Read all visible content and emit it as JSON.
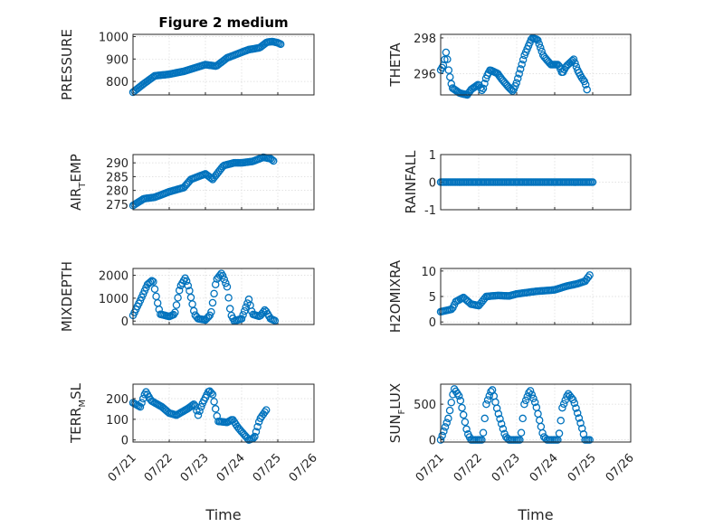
{
  "chart_data": [
    {
      "type": "scatter",
      "title": "Figure 2 medium",
      "ylabel": "PRESSURE",
      "ylim": [
        740,
        1010
      ],
      "yticks": [
        800,
        900,
        1000
      ],
      "xlim": [
        0,
        5
      ],
      "xticks": [
        "07/21",
        "07/22",
        "07/23",
        "07/24",
        "07/25",
        "07/26"
      ],
      "xlabel": "",
      "anchors": [
        [
          0,
          752
        ],
        [
          0.3,
          790
        ],
        [
          0.6,
          825
        ],
        [
          1.0,
          832
        ],
        [
          1.4,
          845
        ],
        [
          1.8,
          865
        ],
        [
          2.0,
          875
        ],
        [
          2.3,
          868
        ],
        [
          2.6,
          905
        ],
        [
          3.0,
          930
        ],
        [
          3.2,
          942
        ],
        [
          3.5,
          950
        ],
        [
          3.7,
          975
        ],
        [
          3.85,
          978
        ],
        [
          4.0,
          972
        ],
        [
          4.1,
          965
        ]
      ],
      "marker_step": 0.04,
      "series": [
        {
          "y": []
        }
      ]
    },
    {
      "type": "scatter",
      "title": "",
      "ylabel": "THETA",
      "ylim": [
        294.8,
        298.2
      ],
      "yticks": [
        296,
        298
      ],
      "xlim": [
        0,
        5
      ],
      "xticks": [
        "07/21",
        "07/22",
        "07/23",
        "07/24",
        "07/25",
        "07/26"
      ],
      "xlabel": "",
      "anchors": [
        [
          0,
          296.2
        ],
        [
          0.08,
          296.5
        ],
        [
          0.15,
          297.3
        ],
        [
          0.2,
          296.3
        ],
        [
          0.3,
          295.2
        ],
        [
          0.5,
          294.9
        ],
        [
          0.7,
          294.8
        ],
        [
          0.8,
          295.1
        ],
        [
          1.0,
          295.4
        ],
        [
          1.1,
          295.0
        ],
        [
          1.2,
          295.8
        ],
        [
          1.3,
          296.2
        ],
        [
          1.5,
          296.0
        ],
        [
          1.6,
          295.7
        ],
        [
          1.8,
          295.2
        ],
        [
          1.9,
          295.0
        ],
        [
          2.0,
          295.5
        ],
        [
          2.2,
          297.0
        ],
        [
          2.4,
          298.0
        ],
        [
          2.55,
          297.9
        ],
        [
          2.7,
          297.0
        ],
        [
          2.9,
          296.5
        ],
        [
          3.1,
          296.5
        ],
        [
          3.2,
          296.0
        ],
        [
          3.3,
          296.4
        ],
        [
          3.4,
          296.6
        ],
        [
          3.5,
          296.8
        ],
        [
          3.6,
          296.2
        ],
        [
          3.7,
          295.8
        ],
        [
          3.8,
          295.5
        ],
        [
          3.85,
          295.1
        ]
      ],
      "marker_step": 0.035,
      "series": [
        {
          "y": []
        }
      ]
    },
    {
      "type": "scatter",
      "title": "",
      "ylabel": "AIR_TEMP",
      "ylim": [
        273,
        293
      ],
      "yticks": [
        275,
        280,
        285,
        290
      ],
      "xlim": [
        0,
        5
      ],
      "xticks": [
        "07/21",
        "07/22",
        "07/23",
        "07/24",
        "07/25",
        "07/26"
      ],
      "xlabel": "",
      "anchors": [
        [
          0,
          274.5
        ],
        [
          0.3,
          277
        ],
        [
          0.6,
          277.5
        ],
        [
          1.0,
          279.5
        ],
        [
          1.4,
          281
        ],
        [
          1.6,
          284
        ],
        [
          1.8,
          285
        ],
        [
          2.0,
          286
        ],
        [
          2.2,
          284
        ],
        [
          2.5,
          289
        ],
        [
          2.8,
          290
        ],
        [
          3.0,
          290
        ],
        [
          3.3,
          290.5
        ],
        [
          3.5,
          291.5
        ],
        [
          3.6,
          292
        ],
        [
          3.8,
          291.5
        ],
        [
          3.9,
          290.5
        ]
      ],
      "marker_step": 0.04,
      "series": [
        {
          "y": []
        }
      ]
    },
    {
      "type": "scatter",
      "title": "",
      "ylabel": "RAINFALL",
      "ylim": [
        -1,
        1
      ],
      "yticks": [
        -1,
        0,
        1
      ],
      "xlim": [
        0,
        5
      ],
      "xticks": [
        "07/21",
        "07/22",
        "07/23",
        "07/24",
        "07/25",
        "07/26"
      ],
      "xlabel": "",
      "anchors": [
        [
          0,
          0
        ],
        [
          4.0,
          0
        ]
      ],
      "marker_step": 0.04,
      "series": [
        {
          "y": []
        }
      ]
    },
    {
      "type": "scatter",
      "title": "",
      "ylabel": "MIXDEPTH",
      "ylim": [
        -150,
        2300
      ],
      "yticks": [
        0,
        1000,
        2000
      ],
      "xlim": [
        0,
        5
      ],
      "xticks": [
        "07/21",
        "07/22",
        "07/23",
        "07/24",
        "07/25",
        "07/26"
      ],
      "xlabel": "",
      "anchors": [
        [
          0,
          250
        ],
        [
          0.2,
          900
        ],
        [
          0.4,
          1600
        ],
        [
          0.55,
          1800
        ],
        [
          0.65,
          1000
        ],
        [
          0.75,
          300
        ],
        [
          1.0,
          200
        ],
        [
          1.15,
          300
        ],
        [
          1.3,
          1500
        ],
        [
          1.45,
          1900
        ],
        [
          1.55,
          1400
        ],
        [
          1.7,
          300
        ],
        [
          1.8,
          100
        ],
        [
          2.0,
          50
        ],
        [
          2.15,
          300
        ],
        [
          2.3,
          1800
        ],
        [
          2.45,
          2100
        ],
        [
          2.6,
          1500
        ],
        [
          2.7,
          300
        ],
        [
          2.8,
          0
        ],
        [
          3.0,
          100
        ],
        [
          3.2,
          950
        ],
        [
          3.3,
          300
        ],
        [
          3.5,
          200
        ],
        [
          3.65,
          500
        ],
        [
          3.8,
          100
        ],
        [
          3.95,
          0
        ]
      ],
      "marker_step": 0.04,
      "series": [
        {
          "y": []
        }
      ]
    },
    {
      "type": "scatter",
      "title": "",
      "ylabel": "H2OMIXRA",
      "ylim": [
        -0.5,
        10.5
      ],
      "yticks": [
        0,
        5,
        10
      ],
      "xlim": [
        0,
        5
      ],
      "xticks": [
        "07/21",
        "07/22",
        "07/23",
        "07/24",
        "07/25",
        "07/26"
      ],
      "xlabel": "",
      "anchors": [
        [
          0,
          2
        ],
        [
          0.3,
          2.5
        ],
        [
          0.4,
          4
        ],
        [
          0.6,
          4.8
        ],
        [
          0.8,
          3.5
        ],
        [
          1.0,
          3.2
        ],
        [
          1.2,
          5
        ],
        [
          1.5,
          5.2
        ],
        [
          1.8,
          5.1
        ],
        [
          2.0,
          5.5
        ],
        [
          2.5,
          6
        ],
        [
          3.0,
          6.3
        ],
        [
          3.3,
          7
        ],
        [
          3.6,
          7.5
        ],
        [
          3.8,
          8
        ],
        [
          3.95,
          9.5
        ]
      ],
      "marker_step": 0.04,
      "series": [
        {
          "y": []
        }
      ]
    },
    {
      "type": "scatter",
      "title": "",
      "ylabel": "TERR_MSL",
      "ylim": [
        -10,
        270
      ],
      "yticks": [
        0,
        100,
        200
      ],
      "xlim": [
        0,
        5
      ],
      "xticks": [
        "07/21",
        "07/22",
        "07/23",
        "07/24",
        "07/25",
        "07/26"
      ],
      "xlabel": "",
      "anchors": [
        [
          0,
          180
        ],
        [
          0.2,
          160
        ],
        [
          0.35,
          235
        ],
        [
          0.5,
          190
        ],
        [
          0.8,
          160
        ],
        [
          1.0,
          130
        ],
        [
          1.2,
          120
        ],
        [
          1.5,
          150
        ],
        [
          1.7,
          175
        ],
        [
          1.8,
          120
        ],
        [
          1.9,
          170
        ],
        [
          2.1,
          240
        ],
        [
          2.2,
          220
        ],
        [
          2.35,
          90
        ],
        [
          2.6,
          85
        ],
        [
          2.75,
          100
        ],
        [
          2.9,
          60
        ],
        [
          3.1,
          20
        ],
        [
          3.2,
          0
        ],
        [
          3.35,
          10
        ],
        [
          3.5,
          100
        ],
        [
          3.7,
          150
        ]
      ],
      "marker_step": 0.04,
      "series": [
        {
          "y": []
        }
      ]
    },
    {
      "type": "scatter",
      "title": "",
      "ylabel": "SUN_FLUX",
      "ylim": [
        -30,
        780
      ],
      "yticks": [
        0,
        500
      ],
      "xlim": [
        0,
        5
      ],
      "xticks": [
        "07/21",
        "07/22",
        "07/23",
        "07/24",
        "07/25",
        "07/26"
      ],
      "xlabel": "",
      "anchors": [
        [
          0,
          0
        ],
        [
          0.2,
          300
        ],
        [
          0.35,
          720
        ],
        [
          0.5,
          600
        ],
        [
          0.7,
          100
        ],
        [
          0.8,
          0
        ],
        [
          1.1,
          0
        ],
        [
          1.2,
          500
        ],
        [
          1.35,
          720
        ],
        [
          1.5,
          400
        ],
        [
          1.7,
          50
        ],
        [
          1.8,
          0
        ],
        [
          2.1,
          0
        ],
        [
          2.2,
          500
        ],
        [
          2.35,
          700
        ],
        [
          2.5,
          500
        ],
        [
          2.7,
          50
        ],
        [
          2.8,
          0
        ],
        [
          3.1,
          0
        ],
        [
          3.2,
          450
        ],
        [
          3.35,
          650
        ],
        [
          3.5,
          550
        ],
        [
          3.7,
          200
        ],
        [
          3.8,
          0
        ],
        [
          3.95,
          0
        ]
      ],
      "marker_step": 0.04,
      "series": [
        {
          "y": []
        }
      ]
    }
  ],
  "xaxis_title": "Time",
  "colors": {
    "marker": "#0072bd",
    "axis": "#262626",
    "grid": "#d9d9d9"
  }
}
